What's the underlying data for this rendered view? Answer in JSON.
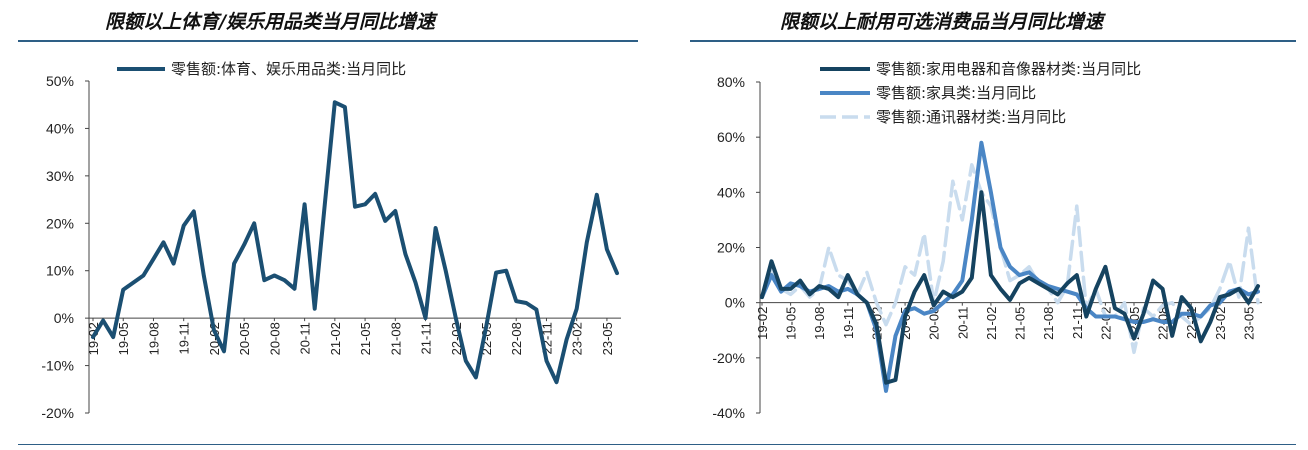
{
  "chart_data": [
    {
      "type": "line",
      "title": "限额以上体育/娱乐用品类当月同比增速",
      "ylim": [
        -0.2,
        0.5
      ],
      "yticks": [
        "-20%",
        "-10%",
        "0%",
        "10%",
        "20%",
        "30%",
        "40%",
        "50%"
      ],
      "yvalues": [
        -0.2,
        -0.1,
        0,
        0.1,
        0.2,
        0.3,
        0.4,
        0.5
      ],
      "xticks": [
        {
          "label": "19-02",
          "index": 0
        },
        {
          "label": "19-05",
          "index": 3
        },
        {
          "label": "19-08",
          "index": 6
        },
        {
          "label": "19-11",
          "index": 9
        },
        {
          "label": "20-02",
          "index": 12
        },
        {
          "label": "20-05",
          "index": 15
        },
        {
          "label": "20-08",
          "index": 18
        },
        {
          "label": "20-11",
          "index": 21
        },
        {
          "label": "21-02",
          "index": 24
        },
        {
          "label": "21-05",
          "index": 27
        },
        {
          "label": "21-08",
          "index": 30
        },
        {
          "label": "21-11",
          "index": 33
        },
        {
          "label": "22-02",
          "index": 36
        },
        {
          "label": "22-05",
          "index": 39
        },
        {
          "label": "22-08",
          "index": 42
        },
        {
          "label": "22-11",
          "index": 45
        },
        {
          "label": "23-02",
          "index": 48
        },
        {
          "label": "23-05",
          "index": 51
        }
      ],
      "grid": false,
      "legend_position": "top",
      "series": [
        {
          "name": "零售额:体育、娱乐用品类:当月同比",
          "color": "#1b4f72",
          "width": 4,
          "dash": "",
          "values": [
            -0.04,
            -0.005,
            -0.04,
            0.06,
            0.075,
            0.09,
            0.125,
            0.16,
            0.115,
            0.195,
            0.225,
            0.09,
            -0.025,
            -0.07,
            0.115,
            0.155,
            0.2,
            0.08,
            0.09,
            0.08,
            0.062,
            0.24,
            0.02,
            0.24,
            0.455,
            0.445,
            0.235,
            0.24,
            0.262,
            0.205,
            0.226,
            0.135,
            0.075,
            0.0,
            0.19,
            0.1,
            0.0,
            -0.09,
            -0.125,
            -0.02,
            0.096,
            0.1,
            0.036,
            0.032,
            0.018,
            -0.09,
            -0.135,
            -0.045,
            0.02,
            0.16,
            0.26,
            0.145,
            0.095
          ]
        }
      ]
    },
    {
      "type": "line",
      "title": "限额以上耐用可选消费品当月同比增速",
      "ylim": [
        -0.4,
        0.8
      ],
      "yticks": [
        "-40%",
        "-20%",
        "0%",
        "20%",
        "40%",
        "60%",
        "80%"
      ],
      "yvalues": [
        -0.4,
        -0.2,
        0,
        0.2,
        0.4,
        0.6,
        0.8
      ],
      "xticks": [
        {
          "label": "19-02",
          "index": 0
        },
        {
          "label": "19-05",
          "index": 3
        },
        {
          "label": "19-08",
          "index": 6
        },
        {
          "label": "19-11",
          "index": 9
        },
        {
          "label": "20-02",
          "index": 12
        },
        {
          "label": "20-05",
          "index": 15
        },
        {
          "label": "20-08",
          "index": 18
        },
        {
          "label": "20-11",
          "index": 21
        },
        {
          "label": "21-02",
          "index": 24
        },
        {
          "label": "21-05",
          "index": 27
        },
        {
          "label": "21-08",
          "index": 30
        },
        {
          "label": "21-11",
          "index": 33
        },
        {
          "label": "22-02",
          "index": 36
        },
        {
          "label": "22-05",
          "index": 39
        },
        {
          "label": "22-08",
          "index": 42
        },
        {
          "label": "22-11",
          "index": 45
        },
        {
          "label": "23-02",
          "index": 48
        },
        {
          "label": "23-05",
          "index": 51
        }
      ],
      "grid": false,
      "legend_position": "top",
      "series": [
        {
          "name": "零售额:通讯器材类:当月同比",
          "color": "#c9dcee",
          "width": 3.5,
          "dash": "18 7",
          "values": [
            0.02,
            0.12,
            0.05,
            0.03,
            0.06,
            0.02,
            0.05,
            0.2,
            0.1,
            0.08,
            0.03,
            0.11,
            0.0,
            -0.08,
            0.0,
            0.13,
            0.1,
            0.25,
            0.0,
            0.15,
            0.44,
            0.3,
            0.5,
            0.4,
            0.35,
            0.2,
            0.08,
            0.1,
            0.13,
            0.07,
            0.05,
            0.0,
            0.06,
            0.35,
            -0.02,
            0.05,
            -0.05,
            -0.05,
            0.0,
            -0.18,
            -0.02,
            -0.05,
            -0.01,
            0.0,
            -0.05,
            -0.08,
            -0.05,
            -0.02,
            0.05,
            0.15,
            0.02,
            0.27,
            0.0
          ]
        },
        {
          "name": "零售额:家具类:当月同比",
          "color": "#4a86c5",
          "width": 4,
          "dash": "",
          "values": [
            0.02,
            0.1,
            0.04,
            0.07,
            0.06,
            0.04,
            0.05,
            0.06,
            0.04,
            0.05,
            0.03,
            0.0,
            -0.1,
            -0.32,
            -0.12,
            -0.03,
            -0.02,
            -0.04,
            -0.03,
            0.0,
            0.03,
            0.08,
            0.3,
            0.58,
            0.4,
            0.2,
            0.13,
            0.1,
            0.11,
            0.08,
            0.06,
            0.05,
            0.04,
            0.03,
            -0.02,
            -0.05,
            -0.05,
            -0.05,
            -0.06,
            -0.07,
            -0.07,
            -0.06,
            -0.07,
            -0.07,
            -0.04,
            -0.04,
            -0.05,
            -0.01,
            0.0,
            0.04,
            0.05,
            0.03,
            0.04
          ]
        },
        {
          "name": "零售额:家用电器和音像器材类:当月同比",
          "color": "#154360",
          "width": 4,
          "dash": "",
          "values": [
            0.02,
            0.15,
            0.05,
            0.05,
            0.08,
            0.03,
            0.06,
            0.05,
            0.02,
            0.1,
            0.03,
            0.0,
            -0.08,
            -0.29,
            -0.28,
            -0.05,
            0.04,
            0.1,
            -0.01,
            0.04,
            0.02,
            0.04,
            0.09,
            0.4,
            0.1,
            0.05,
            0.01,
            0.07,
            0.09,
            0.07,
            0.05,
            0.03,
            0.07,
            0.1,
            -0.05,
            0.05,
            0.13,
            -0.02,
            -0.04,
            -0.13,
            -0.04,
            0.08,
            0.05,
            -0.12,
            0.02,
            -0.02,
            -0.14,
            -0.07,
            0.02,
            0.03,
            0.05,
            0.0,
            0.06
          ]
        }
      ]
    }
  ]
}
